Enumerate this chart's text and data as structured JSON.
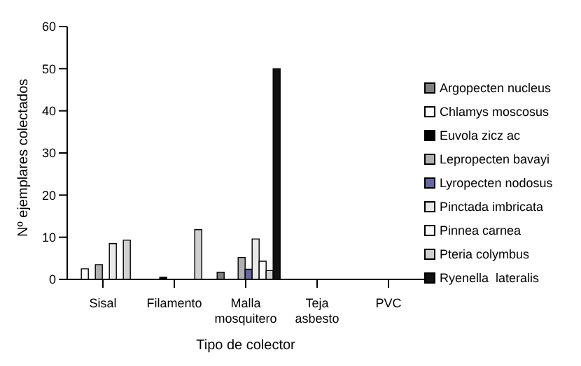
{
  "chart_data": {
    "type": "bar",
    "xlabel": "Tipo de colector",
    "ylabel": "Nº ejemplares colectados",
    "categories": [
      "Sisal",
      "Filamento",
      "Malla mosquitero",
      "Teja asbesto",
      "PVC"
    ],
    "series": [
      {
        "name": "Argopecten nucleus",
        "color": "#808080",
        "values": [
          0,
          0,
          1.7,
          0,
          0
        ]
      },
      {
        "name": "Chlamys moscosus",
        "color": "#ffffff",
        "values": [
          2.5,
          null,
          null,
          0,
          0
        ]
      },
      {
        "name": "Euvola zicz ac",
        "color": "#000000",
        "values": [
          null,
          0.5,
          0,
          0,
          0
        ]
      },
      {
        "name": "Lepropecten bavayi",
        "color": "#b0b0b0",
        "values": [
          3.5,
          0,
          5.2,
          0,
          0
        ]
      },
      {
        "name": "Lyropecten nodosus",
        "color": "#6666a0",
        "values": [
          0,
          0,
          2.4,
          0,
          0
        ]
      },
      {
        "name": "Pinctada imbricata",
        "color": "#e8e8e8",
        "values": [
          8.5,
          0,
          9.6,
          0,
          0
        ]
      },
      {
        "name": "Pinnea carnea",
        "color": "#fafafa",
        "values": [
          0,
          0,
          4.3,
          0,
          0
        ]
      },
      {
        "name": "Pteria colymbus",
        "color": "#d0d0d0",
        "values": [
          9.3,
          11.8,
          2.1,
          0,
          0
        ]
      },
      {
        "name": "Ryenella  lateralis",
        "color": "#111111",
        "values": [
          0,
          0,
          50,
          0,
          0
        ]
      }
    ],
    "ylim": [
      0,
      60
    ],
    "yticks": [
      0,
      10,
      20,
      30,
      40,
      50,
      60
    ],
    "grid": false,
    "legend": "right"
  }
}
